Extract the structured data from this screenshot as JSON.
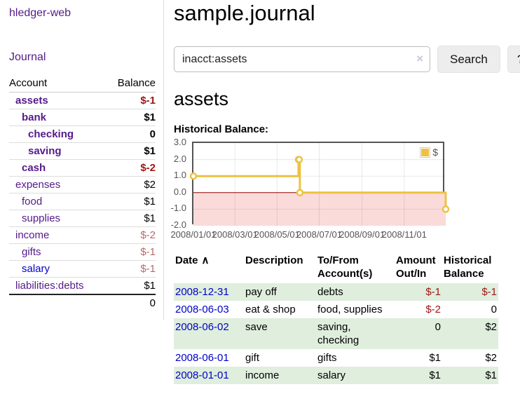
{
  "app_title": "hledger-web",
  "sidebar": {
    "journal_link": "Journal",
    "accounts": {
      "header": {
        "account": "Account",
        "balance": "Balance"
      },
      "rows": [
        {
          "name": "assets",
          "balance": "$-1"
        },
        {
          "name": "bank",
          "balance": "$1"
        },
        {
          "name": "checking",
          "balance": "0"
        },
        {
          "name": "saving",
          "balance": "$1"
        },
        {
          "name": "cash",
          "balance": "$-2"
        },
        {
          "name": "expenses",
          "balance": "$2"
        },
        {
          "name": "food",
          "balance": "$1"
        },
        {
          "name": "supplies",
          "balance": "$1"
        },
        {
          "name": "income",
          "balance": "$-2"
        },
        {
          "name": "gifts",
          "balance": "$-1"
        },
        {
          "name": "salary",
          "balance": "$-1"
        },
        {
          "name": "liabilities:debts",
          "balance": "$1"
        }
      ],
      "total": "0"
    }
  },
  "header": {
    "title": "sample.journal"
  },
  "search": {
    "value": "inacct:assets",
    "clear_icon": "×",
    "search_button": "Search",
    "help_button": "?"
  },
  "account_page": {
    "heading": "assets",
    "chart_label": "Historical Balance:"
  },
  "chart_data": {
    "type": "line",
    "title": "Historical Balance:",
    "steps": true,
    "series": [
      {
        "name": "$",
        "points": [
          [
            "2008-01-01",
            1
          ],
          [
            "2008-06-01",
            2
          ],
          [
            "2008-06-02",
            2
          ],
          [
            "2008-06-03",
            0
          ],
          [
            "2008-12-31",
            -1
          ]
        ]
      }
    ],
    "x_range": [
      "2008-01-01",
      "2008-12-31"
    ],
    "y_range": [
      -2,
      3
    ],
    "y_ticks": [
      3,
      2,
      1,
      0,
      -1,
      -2
    ],
    "x_ticks": [
      "2008/01/01",
      "2008/03/01",
      "2008/05/01",
      "2008/07/01",
      "2008/09/01",
      "2008/11/01"
    ],
    "legend_position": "top-right",
    "grid": true,
    "line_color": "#edc240",
    "negative_fill": "#fbdada",
    "zero_line_color": "#8b0000"
  },
  "register": {
    "sort_icon": "∧",
    "headers": {
      "date": "Date",
      "description": "Description",
      "accounts": "To/From Account(s)",
      "amount": "Amount Out/In",
      "balance": "Historical Balance"
    },
    "rows": [
      {
        "date": "2008-12-31",
        "description": "pay off",
        "accounts": "debts",
        "amount": "$-1",
        "balance": "$-1"
      },
      {
        "date": "2008-06-03",
        "description": "eat & shop",
        "accounts": "food, supplies",
        "amount": "$-2",
        "balance": "0"
      },
      {
        "date": "2008-06-02",
        "description": "save",
        "accounts": "saving, checking",
        "amount": "0",
        "balance": "$2"
      },
      {
        "date": "2008-06-01",
        "description": "gift",
        "accounts": "gifts",
        "amount": "$1",
        "balance": "$2"
      },
      {
        "date": "2008-01-01",
        "description": "income",
        "accounts": "salary",
        "amount": "$1",
        "balance": "$1"
      }
    ]
  },
  "colors": {
    "link_purple": "#551a8b",
    "link_blue": "#0000cc",
    "negative_red": "#a01616",
    "negative_rose": "#b96a6a",
    "row_green": "#dfeedd",
    "chart_line": "#edc240"
  }
}
